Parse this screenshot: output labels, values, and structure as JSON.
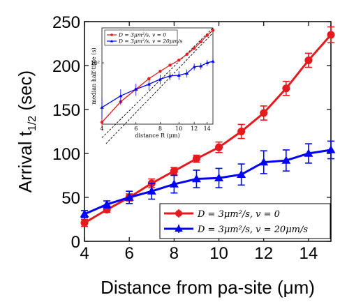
{
  "chart_data": [
    {
      "type": "line",
      "xlabel": "Distance from pa-site (μm)",
      "ylabel_main": "Arrival t",
      "ylabel_sub": "1/2",
      "ylabel_unit": " (sec)",
      "xlim": [
        4,
        15
      ],
      "ylim": [
        0,
        250
      ],
      "xticks": [
        4,
        6,
        8,
        10,
        12,
        14
      ],
      "yticks": [
        0,
        50,
        100,
        150,
        200,
        250
      ],
      "grid": false,
      "legend_placement": "bottom-right",
      "series": [
        {
          "name": "D = 3μm²/s, v = 0",
          "color": "#e41a1c",
          "marker": "circle",
          "x": [
            4,
            5,
            6,
            7,
            8,
            9,
            10,
            11,
            12,
            13,
            14,
            15
          ],
          "y": [
            21,
            36,
            50,
            66,
            80,
            94,
            107,
            125,
            146,
            174,
            206,
            235
          ],
          "err": [
            4,
            3,
            4,
            5,
            4,
            4,
            6,
            8,
            8,
            8,
            8,
            9
          ]
        },
        {
          "name": "D = 3μm²/s, v = 20μm/s",
          "color": "#0000ff",
          "marker": "triangle",
          "x": [
            4,
            5,
            6,
            7,
            8,
            9,
            10,
            11,
            12,
            13,
            14,
            15
          ],
          "y": [
            31,
            42,
            50,
            57,
            65,
            71,
            72,
            76,
            90,
            92,
            100,
            104
          ],
          "err": [
            4,
            4,
            7,
            9,
            10,
            10,
            11,
            12,
            13,
            12,
            11,
            10
          ]
        }
      ]
    },
    {
      "type": "line",
      "xlabel": "distance R (μm)",
      "ylabel": "median half-time (s)",
      "y_scale": "log",
      "x_scale": "log",
      "xticks": [
        4,
        6,
        8,
        10,
        12,
        14
      ],
      "ytick_label": "10²",
      "xlim": [
        4,
        15
      ],
      "ylim": [
        20,
        250
      ],
      "legend_placement": "top-left",
      "series": [
        {
          "name": "D = 3μm²/s, v = 0",
          "color": "#e41a1c",
          "marker": "circle",
          "x": [
            4,
            5,
            6,
            7,
            8,
            9,
            10,
            11,
            12,
            13,
            14,
            15
          ],
          "y": [
            21,
            36,
            50,
            66,
            80,
            94,
            107,
            125,
            146,
            174,
            206,
            235
          ]
        },
        {
          "name": "D = 3μm²/s, v = 20μm/s",
          "color": "#0000ff",
          "marker": "triangle",
          "x": [
            4,
            5,
            6,
            7,
            8,
            9,
            10,
            11,
            12,
            13,
            14,
            15
          ],
          "y": [
            31,
            42,
            50,
            57,
            65,
            71,
            72,
            76,
            90,
            92,
            100,
            104
          ]
        }
      ]
    }
  ]
}
